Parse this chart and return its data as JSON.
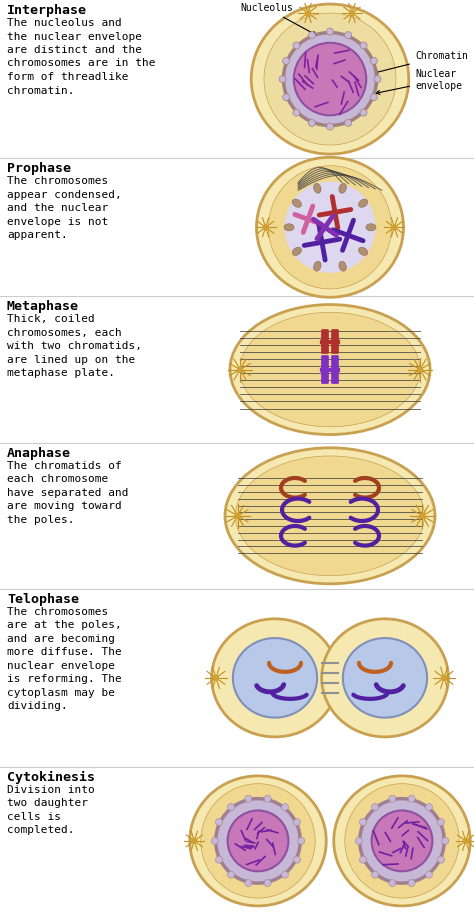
{
  "background_color": "#ffffff",
  "stages": [
    {
      "name": "Interphase",
      "description": "The nucleolus and\nthe nuclear envelope\nare distinct and the\nchromosomes are in the\nform of threadlike\nchromatin.",
      "type": "interphase"
    },
    {
      "name": "Prophase",
      "description": "The chromosomes\nappear condensed,\nand the nuclear\nenvelope is not\napparent.",
      "type": "prophase"
    },
    {
      "name": "Metaphase",
      "description": "Thick, coiled\nchromosomes, each\nwith two chromatids,\nare lined up on the\nmetaphase plate.",
      "type": "metaphase"
    },
    {
      "name": "Anaphase",
      "description": "The chromatids of\neach chromosome\nhave separated and\nare moving toward\nthe poles.",
      "type": "anaphase"
    },
    {
      "name": "Telophase",
      "description": "The chromosomes\nare at the poles,\nand are becoming\nmore diffuse. The\nnuclear envelope\nis reforming. The\ncytoplasm may be\ndividing.",
      "type": "telophase"
    },
    {
      "name": "Cytokinesis",
      "description": "Division into\ntwo daughter\ncells is\ncompleted.",
      "type": "cytokinesis"
    }
  ],
  "cell_outer_color": "#f5e8b0",
  "cell_outer_edge": "#c8a050",
  "cell_inner_color": "#f0d890",
  "cell_nuclear_color": "#ccd4f0",
  "cell_nuclear_edge": "#9090c0",
  "nuc_envelope_color": "#c8b090",
  "chromatin_purple": "#5020a0",
  "chromatin_red": "#b03030",
  "chromatin_orange": "#c06020",
  "chromatin_pink": "#d060a0",
  "spindle_color": "#404040",
  "aster_color": "#c09020",
  "nuc_fragment_color": "#b09070"
}
